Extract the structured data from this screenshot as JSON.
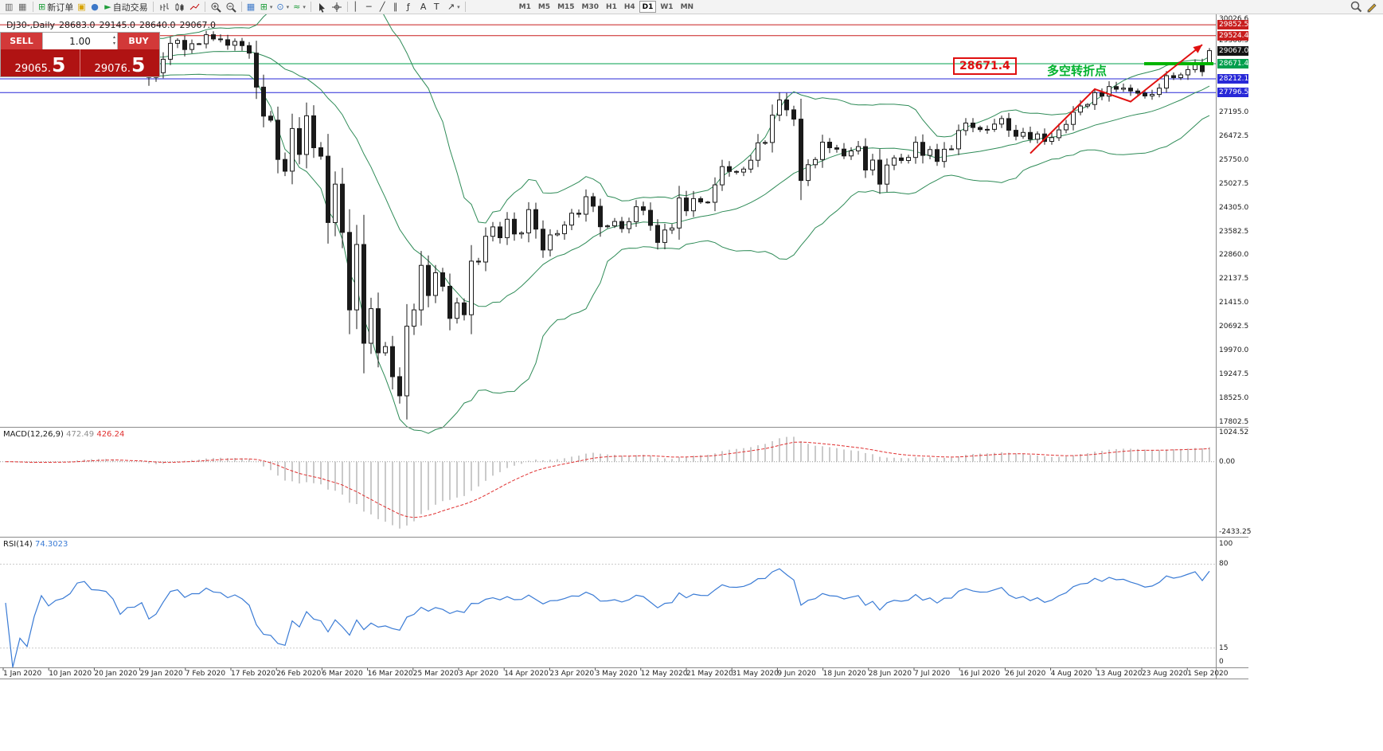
{
  "toolbar": {
    "items": [
      {
        "type": "item",
        "name": "new-chart-button",
        "glyph": "▥",
        "color": "#666"
      },
      {
        "type": "item",
        "name": "profiles-button",
        "glyph": "▦",
        "color": "#666"
      },
      {
        "type": "sep"
      },
      {
        "type": "item",
        "name": "new-order-button",
        "glyph": "⊞",
        "color": "#1f9d3a",
        "label": "新订单"
      },
      {
        "type": "item",
        "name": "mailbox-icon",
        "glyph": "▣",
        "color": "#d8a400"
      },
      {
        "type": "item",
        "name": "community-icon",
        "glyph": "●",
        "color": "#3d78c8"
      },
      {
        "type": "item",
        "name": "autotrading-button",
        "glyph": "►",
        "color": "#1f9d3a",
        "label": "自动交易"
      },
      {
        "type": "sep"
      },
      {
        "type": "svg",
        "name": "bar-chart-icon",
        "svg": "bars"
      },
      {
        "type": "svg",
        "name": "candlestick-chart-icon",
        "svg": "candles"
      },
      {
        "type": "svg",
        "name": "line-chart-icon",
        "svg": "line"
      },
      {
        "type": "sep"
      },
      {
        "type": "svg",
        "name": "zoom-in-icon",
        "svg": "zoomin"
      },
      {
        "type": "svg",
        "name": "zoom-out-icon",
        "svg": "zoomout"
      },
      {
        "type": "sep"
      },
      {
        "type": "item",
        "name": "tile-windows-icon",
        "glyph": "▦",
        "color": "#3d78c8"
      },
      {
        "type": "item",
        "name": "add-chart-icon",
        "glyph": "⊞",
        "color": "#1f9d3a",
        "caret": true
      },
      {
        "type": "item",
        "name": "period-selector-icon",
        "glyph": "⊙",
        "color": "#3d78c8",
        "caret": true
      },
      {
        "type": "item",
        "name": "indicators-icon",
        "glyph": "≈",
        "color": "#1f9d3a",
        "caret": true
      },
      {
        "type": "sep"
      },
      {
        "type": "svg",
        "name": "cursor-icon",
        "svg": "cursor"
      },
      {
        "type": "svg",
        "name": "crosshair-icon",
        "svg": "crosshair"
      },
      {
        "type": "sep"
      },
      {
        "type": "item",
        "name": "vertical-line-icon",
        "glyph": "│",
        "color": "#333"
      },
      {
        "type": "item",
        "name": "horizontal-line-icon",
        "glyph": "─",
        "color": "#333"
      },
      {
        "type": "item",
        "name": "trendline-icon",
        "glyph": "╱",
        "color": "#333"
      },
      {
        "type": "item",
        "name": "equidistant-channel-icon",
        "glyph": "∥",
        "color": "#333"
      },
      {
        "type": "item",
        "name": "fibonacci-icon",
        "glyph": "ƒ",
        "color": "#333"
      },
      {
        "type": "item",
        "name": "text-icon",
        "glyph": "A",
        "color": "#333"
      },
      {
        "type": "item",
        "name": "text-label-icon",
        "glyph": "T",
        "color": "#333"
      },
      {
        "type": "item",
        "name": "arrows-icon",
        "glyph": "↗",
        "color": "#333",
        "caret": true
      },
      {
        "type": "sep"
      },
      {
        "type": "spacer"
      }
    ],
    "timeframes": [
      "M1",
      "M5",
      "M15",
      "M30",
      "H1",
      "H4",
      "D1",
      "W1",
      "MN"
    ],
    "active_timeframe": "D1",
    "right_icons": [
      {
        "name": "search-icon",
        "svg": "magnifier"
      },
      {
        "name": "edit-icon",
        "svg": "pencil"
      }
    ]
  },
  "chart_header": {
    "symbol_period": "DJ30-,Daily",
    "open": "28683.0",
    "high": "29145.0",
    "low": "28640.0",
    "close": "29067.0"
  },
  "trade_panel": {
    "sell_label": "SELL",
    "buy_label": "BUY",
    "volume": "1.00",
    "sell_price_main": "29065.",
    "sell_price_big": "5",
    "buy_price_main": "29076.",
    "buy_price_big": "5"
  },
  "annotations": {
    "level_label": "28671.4",
    "note_text": "多空转折点"
  },
  "price_axis": {
    "plain": [
      "30026.6",
      "29366.5",
      "27195.0",
      "26472.5",
      "25750.0",
      "25027.5",
      "24305.0",
      "23582.5",
      "22860.0",
      "22137.5",
      "21415.0",
      "20692.5",
      "19970.0",
      "19247.5",
      "18525.0",
      "17802.5"
    ],
    "tags": [
      {
        "text": "29852.5",
        "bg": "#c81e1e"
      },
      {
        "text": "29524.4",
        "bg": "#c81e1e"
      },
      {
        "text": "29067.0",
        "bg": "#141414"
      },
      {
        "text": "28671.4",
        "bg": "#009f4d"
      },
      {
        "text": "28212.1",
        "bg": "#2828d7"
      },
      {
        "text": "27796.5",
        "bg": "#2828d7"
      }
    ]
  },
  "chart_data": {
    "type": "candlestick",
    "symbol": "DJ30-",
    "timeframe": "Daily",
    "title": "DJ30-,Daily",
    "y_range": {
      "top": 30170,
      "bottom": 17650
    },
    "first_open": 28538,
    "closes": [
      28868,
      28635,
      28703,
      28584,
      28745,
      28957,
      28824,
      28907,
      28940,
      29030,
      29298,
      29348,
      29196,
      29186,
      29160,
      28990,
      28536,
      28723,
      28734,
      28859,
      28256,
      28400,
      28808,
      29291,
      29380,
      29103,
      29277,
      29276,
      29551,
      29423,
      29398,
      29232,
      29348,
      29220,
      28992,
      27961,
      27081,
      26958,
      25767,
      25409,
      26703,
      25917,
      27091,
      26121,
      25865,
      23851,
      25018,
      23553,
      21201,
      23186,
      20188,
      21237,
      19899,
      20087,
      19174,
      18592,
      20705,
      21201,
      22552,
      21637,
      22327,
      21917,
      20944,
      21413,
      21053,
      22680,
      22654,
      23434,
      23719,
      23391,
      23950,
      23504,
      23538,
      24243,
      23650,
      23019,
      23476,
      23515,
      23775,
      24134,
      24102,
      24634,
      24346,
      23724,
      23750,
      23883,
      23665,
      23876,
      24331,
      24222,
      23765,
      23248,
      23625,
      23685,
      24597,
      24207,
      24576,
      24474,
      24465,
      24995,
      25548,
      25401,
      25383,
      25475,
      25743,
      26270,
      26282,
      27111,
      27572,
      27272,
      26990,
      25128,
      25606,
      25763,
      26290,
      26120,
      26080,
      25872,
      26025,
      26156,
      25446,
      25746,
      25016,
      25596,
      25813,
      25735,
      25827,
      26287,
      25890,
      26067,
      25706,
      26075,
      26086,
      26643,
      26870,
      26735,
      26672,
      26681,
      26840,
      27006,
      26652,
      26470,
      26585,
      26379,
      26540,
      26314,
      26428,
      26664,
      26829,
      27202,
      27387,
      27434,
      27791,
      27687,
      27977,
      27897,
      27931,
      27845,
      27778,
      27693,
      27740,
      27930,
      28308,
      28248,
      28332,
      28492,
      28654,
      28430,
      29067
    ],
    "last_ohlc": {
      "open": 28683.0,
      "high": 29145.0,
      "low": 28640.0,
      "close": 29067.0
    },
    "x_labels": [
      "1 Jan 2020",
      "10 Jan 2020",
      "20 Jan 2020",
      "29 Jan 2020",
      "7 Feb 2020",
      "17 Feb 2020",
      "26 Feb 2020",
      "6 Mar 2020",
      "16 Mar 2020",
      "25 Mar 2020",
      "3 Apr 2020",
      "14 Apr 2020",
      "23 Apr 2020",
      "3 May 2020",
      "12 May 2020",
      "21 May 2020",
      "31 May 2020",
      "9 Jun 2020",
      "18 Jun 2020",
      "28 Jun 2020",
      "7 Jul 2020",
      "16 Jul 2020",
      "26 Jul 2020",
      "4 Aug 2020",
      "13 Aug 2020",
      "23 Aug 2020",
      "1 Sep 2020"
    ],
    "levels": [
      {
        "value": 29852.5,
        "color": "#c81e1e"
      },
      {
        "value": 29524.4,
        "color": "#c81e1e"
      },
      {
        "value": 28671.4,
        "color": "#009f4d"
      },
      {
        "value": 28212.1,
        "color": "#2828d7"
      },
      {
        "value": 27796.5,
        "color": "#2828d7"
      }
    ],
    "thick_segment": {
      "value": 28671.4,
      "color": "#00b400"
    },
    "trend_arrow": {
      "color": "#e01010",
      "points": [
        [
          143,
          25950
        ],
        [
          152,
          27900
        ],
        [
          157,
          27520
        ],
        [
          167,
          29250
        ]
      ]
    },
    "indicators": {
      "bollinger": {
        "period": 20,
        "deviation": 2,
        "color": "#2e8b57"
      },
      "macd": {
        "label": "MACD(12,26,9)",
        "value_main": "472.49",
        "value_signal": "426.24",
        "scale_top": "1024.52",
        "scale_zero": "0.00",
        "scale_bottom": "-2433.25",
        "hist_color": "#b4b4b4",
        "signal_color": "#e03030"
      },
      "rsi": {
        "label": "RSI(14)",
        "value": "74.3023",
        "color": "#3a7bd5",
        "levels": [
          80,
          15
        ],
        "scale_labels": [
          "100",
          "80",
          "15",
          "0"
        ]
      }
    }
  }
}
